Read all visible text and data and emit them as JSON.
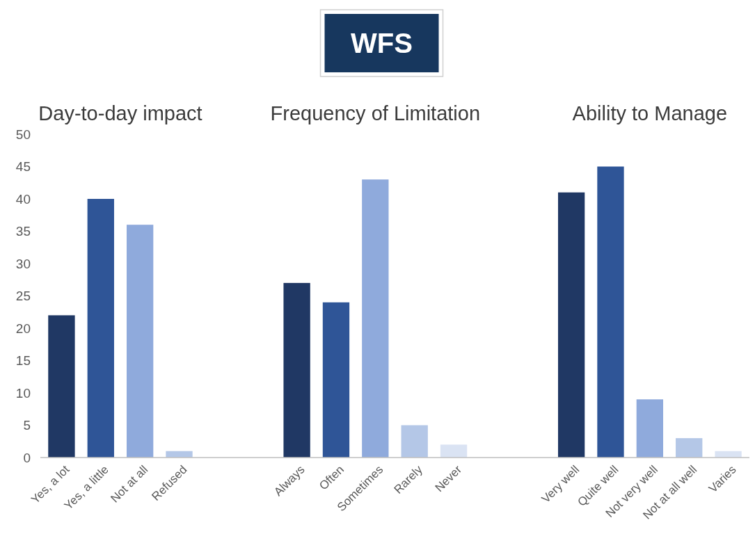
{
  "chart_data": {
    "type": "bar",
    "title": "WFS",
    "annotations": [
      "Day-to-day impact",
      "Frequency of Limitation",
      "Ability to Manage"
    ],
    "categories": [
      "Yes, a lot",
      "Yes, a little",
      "Not at all",
      "Refused",
      null,
      null,
      "Always",
      "Often",
      "Sometimes",
      "Rarely",
      "Never",
      null,
      null,
      "Very well",
      "Quite well",
      "Not very well",
      "Not at all well",
      "Varies"
    ],
    "values": [
      22,
      40,
      36,
      1,
      null,
      null,
      27,
      24,
      43,
      5,
      2,
      null,
      null,
      41,
      45,
      9,
      3,
      1
    ],
    "colors": [
      "#203864",
      "#2f5597",
      "#8faadc",
      "#b4c7e7",
      null,
      null,
      "#203864",
      "#2f5597",
      "#8faadc",
      "#b4c7e7",
      "#dae3f3",
      null,
      null,
      "#203864",
      "#2f5597",
      "#8faadc",
      "#b4c7e7",
      "#dae3f3"
    ],
    "ylim": [
      0,
      50
    ],
    "yticks": [
      0,
      5,
      10,
      15,
      20,
      25,
      30,
      35,
      40,
      45,
      50
    ],
    "grid": false
  }
}
